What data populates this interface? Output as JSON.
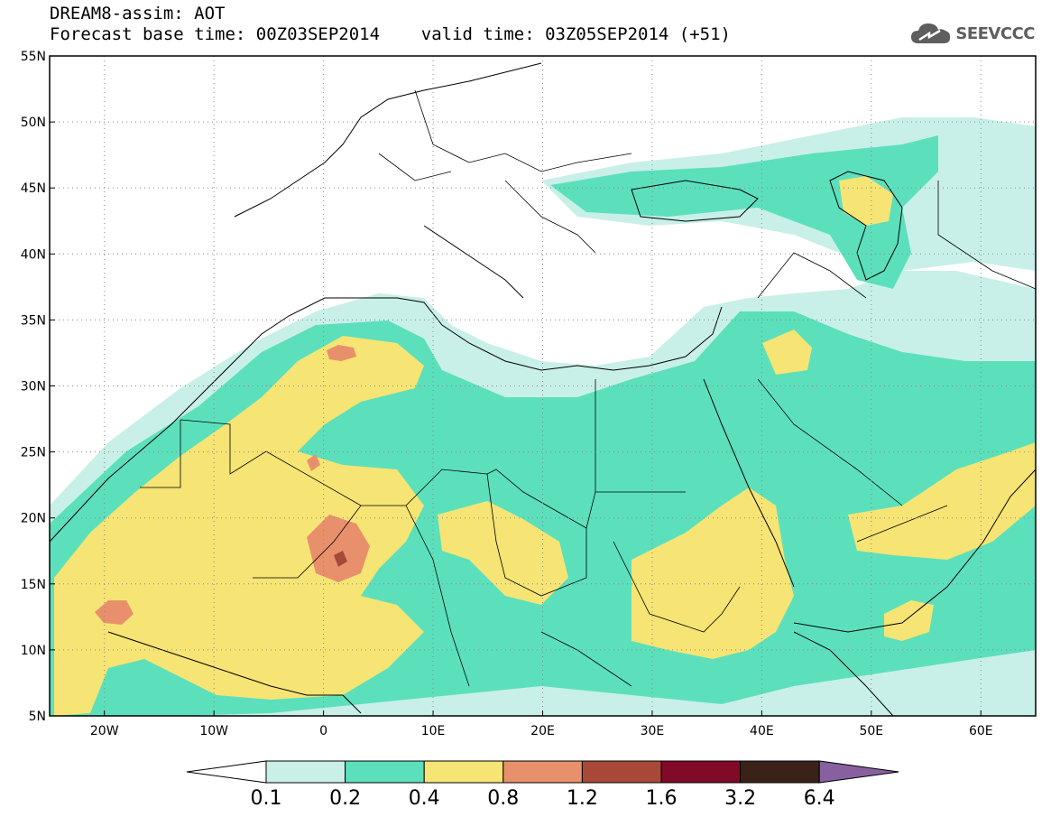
{
  "header": {
    "title_line1": "DREAM8-assim: AOT",
    "title_line2": "Forecast base time: 00Z03SEP2014    valid time: 03Z05SEP2014 (+51)"
  },
  "logo": {
    "text": "SEEVCCC",
    "icon": "cloud-icon"
  },
  "map": {
    "projection": "latitude-longitude",
    "lon_range": [
      -25,
      65
    ],
    "lat_range": [
      5,
      55
    ],
    "grid": "dotted",
    "lat_ticks": [
      "55N",
      "50N",
      "45N",
      "40N",
      "35N",
      "30N",
      "25N",
      "20N",
      "15N",
      "10N",
      "5N"
    ],
    "lon_ticks": [
      "20W",
      "10W",
      "0",
      "10E",
      "20E",
      "30E",
      "40E",
      "50E",
      "60E"
    ]
  },
  "legend": {
    "colors": [
      "#ffffff",
      "#c8f0e8",
      "#5ce0bc",
      "#f6e474",
      "#e8906c",
      "#a84838",
      "#800a28",
      "#3a2218",
      "#8860a0"
    ],
    "labels": [
      "0.1",
      "0.2",
      "0.4",
      "0.8",
      "1.2",
      "1.6",
      "3.2",
      "6.4"
    ]
  }
}
